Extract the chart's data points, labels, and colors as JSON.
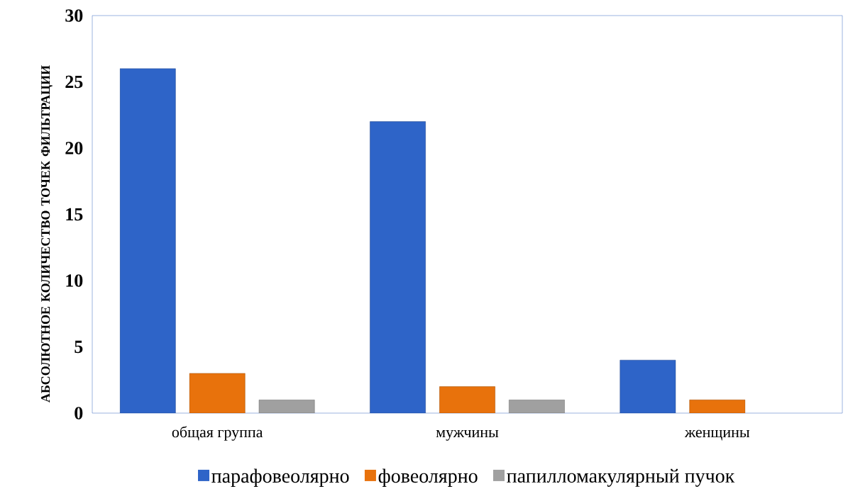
{
  "chart_data": {
    "type": "bar",
    "ylabel": "АБСОЛЮТНОЕ КОЛИЧЕСТВО ТОЧЕК ФИЛЬТРАЦИИ",
    "categories": [
      "общая группа",
      "мужчины",
      "женщины"
    ],
    "series": [
      {
        "name": "парафовеолярно",
        "color": "#2e64c8",
        "values": [
          26,
          22,
          4
        ]
      },
      {
        "name": "фовеолярно",
        "color": "#e8720c",
        "values": [
          3,
          2,
          1
        ]
      },
      {
        "name": "папилломакулярный пучок",
        "color": "#a0a0a0",
        "values": [
          1,
          1,
          null
        ]
      }
    ],
    "ylim": [
      0,
      30
    ],
    "yticks": [
      0,
      5,
      10,
      15,
      20,
      25,
      30
    ],
    "legend": "bottom"
  }
}
